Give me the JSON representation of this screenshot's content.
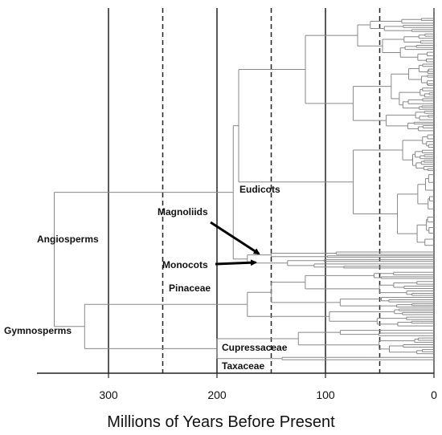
{
  "chart_data": {
    "type": "other",
    "description_type": "phylogenetic-tree",
    "title": "",
    "xlabel": "Millions of Years Before Present",
    "ylabel": "",
    "xlim": [
      360,
      0
    ],
    "x_reversed": true,
    "x_tick_values": [
      300,
      200,
      100,
      0
    ],
    "x_tick_labels": [
      "300",
      "200",
      "100",
      "0"
    ],
    "solid_reference_lines": [
      300,
      200,
      100
    ],
    "dashed_reference_lines": [
      250,
      150,
      50
    ],
    "clades": [
      {
        "name": "Angiosperms",
        "crown_age": 185
      },
      {
        "name": "Gymnosperms",
        "crown_age": 322
      },
      {
        "name": "Eudicots",
        "crown_age": 180
      },
      {
        "name": "Magnoliids",
        "crown_age": 150
      },
      {
        "name": "Monocots",
        "crown_age": 135
      },
      {
        "name": "Pinaceae",
        "crown_age": 172
      },
      {
        "name": "Cupressaceae",
        "crown_age": 125
      },
      {
        "name": "Taxaceae",
        "crown_age": 200
      }
    ],
    "root_age": 350,
    "colors": {
      "tree_lines": "#888888",
      "reference_lines": "#222222",
      "arrows": "#000000"
    }
  }
}
